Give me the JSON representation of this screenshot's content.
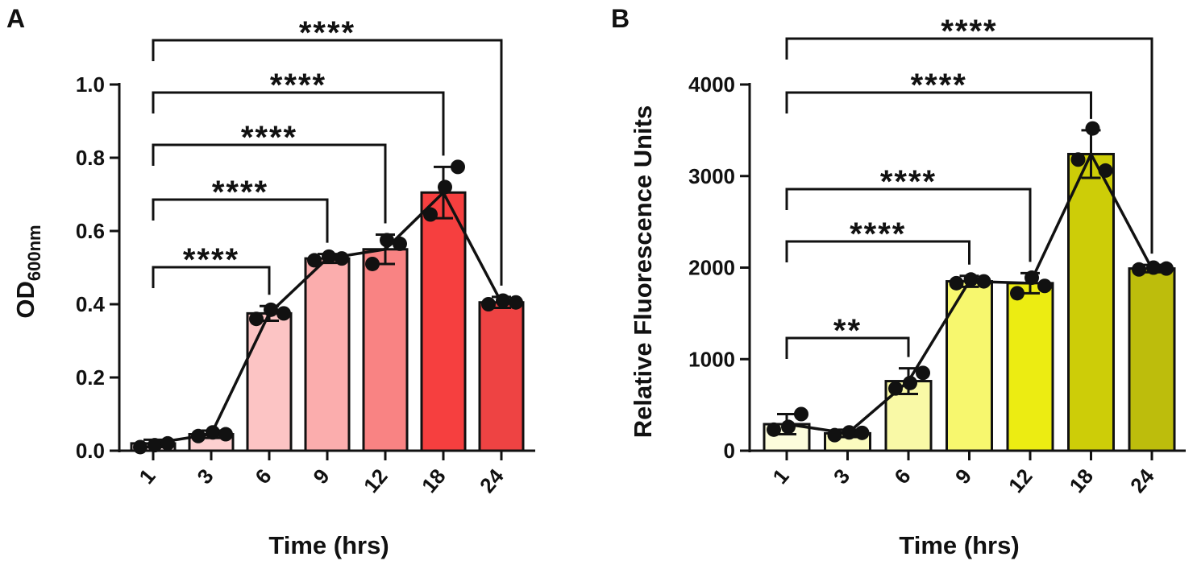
{
  "chart_data": [
    {
      "type": "bar",
      "panel": "A",
      "categories": [
        "1",
        "3",
        "6",
        "9",
        "12",
        "18",
        "24"
      ],
      "values": [
        0.02,
        0.045,
        0.375,
        0.525,
        0.55,
        0.705,
        0.405
      ],
      "errors": [
        0.01,
        0.01,
        0.02,
        0.012,
        0.04,
        0.07,
        0.015
      ],
      "points": [
        [
          0.01,
          0.015,
          0.02
        ],
        [
          0.04,
          0.05,
          0.045
        ],
        [
          0.36,
          0.385,
          0.375
        ],
        [
          0.52,
          0.53,
          0.525
        ],
        [
          0.51,
          0.575,
          0.565
        ],
        [
          0.645,
          0.72,
          0.775
        ],
        [
          0.4,
          0.41,
          0.405
        ]
      ],
      "colors": [
        "#fde8e8",
        "#fdd0d0",
        "#fcc4c4",
        "#fbadad",
        "#f98383",
        "#f63f3f",
        "#ee4343"
      ],
      "xlabel": "Time (hrs)",
      "ylabel": "OD",
      "ylabel_sub": "600nm",
      "ylim": [
        0,
        1.0
      ],
      "yticks": [
        "0.0",
        "0.2",
        "0.4",
        "0.6",
        "0.8",
        "1.0"
      ],
      "yticks_values": [
        0,
        0.2,
        0.4,
        0.6,
        0.8,
        1.0
      ],
      "significance": [
        {
          "from": "1",
          "to": "6",
          "label": "****"
        },
        {
          "from": "1",
          "to": "9",
          "label": "****"
        },
        {
          "from": "1",
          "to": "12",
          "label": "****"
        },
        {
          "from": "1",
          "to": "18",
          "label": "****"
        },
        {
          "from": "1",
          "to": "24",
          "label": "****"
        }
      ]
    },
    {
      "type": "bar",
      "panel": "B",
      "categories": [
        "1",
        "3",
        "6",
        "9",
        "12",
        "18",
        "24"
      ],
      "values": [
        290,
        190,
        760,
        1850,
        1830,
        3240,
        1990
      ],
      "errors": [
        110,
        40,
        140,
        60,
        110,
        260,
        40
      ],
      "points": [
        [
          230,
          260,
          400
        ],
        [
          170,
          200,
          195
        ],
        [
          680,
          740,
          850
        ],
        [
          1830,
          1870,
          1850
        ],
        [
          1720,
          1890,
          1800
        ],
        [
          3180,
          3520,
          3060
        ],
        [
          1980,
          2000,
          1990
        ]
      ],
      "colors": [
        "#fcfcdc",
        "#fbfbbf",
        "#f9f9a6",
        "#f7f76e",
        "#ecec12",
        "#cdcd08",
        "#bdbd0c"
      ],
      "xlabel": "Time  (hrs)",
      "ylabel": "Relative Fluorescence Units",
      "ylim": [
        0,
        4000
      ],
      "yticks": [
        "0",
        "1000",
        "2000",
        "3000",
        "4000"
      ],
      "yticks_values": [
        0,
        1000,
        2000,
        3000,
        4000
      ],
      "significance": [
        {
          "from": "1",
          "to": "6",
          "label": "**"
        },
        {
          "from": "1",
          "to": "9",
          "label": "****"
        },
        {
          "from": "1",
          "to": "12",
          "label": "****"
        },
        {
          "from": "1",
          "to": "18",
          "label": "****"
        },
        {
          "from": "1",
          "to": "24",
          "label": "****"
        }
      ]
    }
  ]
}
